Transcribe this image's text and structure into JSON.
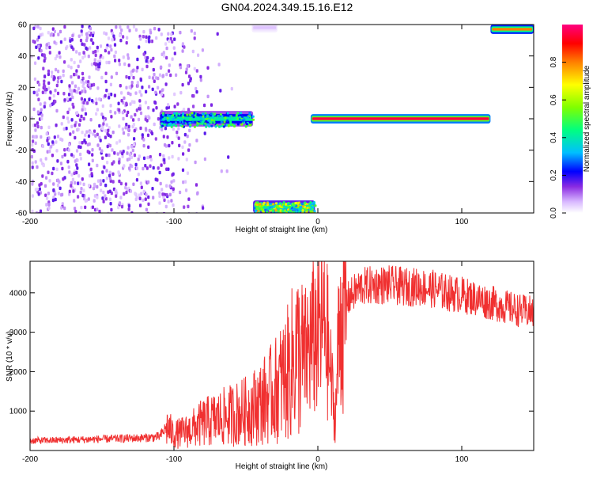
{
  "title": "GN04.2024.349.15.16.E12",
  "chart_data": [
    {
      "type": "heatmap",
      "xlabel": "Height of straight line (km)",
      "ylabel": "Frequency (Hz)",
      "xlim": [
        -200,
        150
      ],
      "ylim": [
        -60,
        60
      ],
      "xticks": [
        -200,
        -100,
        0,
        100
      ],
      "yticks": [
        -60,
        -40,
        -20,
        0,
        20,
        40,
        60
      ],
      "colorbar": {
        "label": "Normalized spectral amplitude",
        "range": [
          0,
          1
        ],
        "ticks": [
          0.0,
          0.2,
          0.4,
          0.6,
          0.8
        ],
        "tick_labels": [
          "0.0",
          "0.2",
          "0.4",
          "0.6",
          "0.8"
        ],
        "colors": [
          "#ffffff",
          "#d8b8ff",
          "#8a2be2",
          "#0000ff",
          "#00bfff",
          "#00ff80",
          "#7fff00",
          "#ffff00",
          "#ff8000",
          "#ff0000",
          "#ff0080"
        ]
      },
      "features": [
        {
          "name": "noise-scatter",
          "x_range": [
            -200,
            -100
          ],
          "freq_range": [
            -60,
            60
          ],
          "amplitude": 0.1
        },
        {
          "name": "band-center-noisy",
          "x_range": [
            -110,
            -45
          ],
          "freq": 0,
          "width_hz": 10,
          "amplitude": 0.4
        },
        {
          "name": "band-low",
          "x_range": [
            -45,
            -2
          ],
          "freq": -56,
          "width_hz": 8,
          "amplitude": 0.55
        },
        {
          "name": "band-top-faint",
          "x_range": [
            -46,
            -28
          ],
          "freq": 58,
          "width_hz": 6,
          "amplitude": 0.05
        },
        {
          "name": "band-center-strong",
          "x_range": [
            -5,
            120
          ],
          "freq": 0,
          "width_hz": 6,
          "amplitude": 0.95
        },
        {
          "name": "band-high",
          "x_range": [
            120,
            150
          ],
          "freq": 57,
          "width_hz": 6,
          "amplitude": 0.8
        }
      ]
    },
    {
      "type": "line",
      "xlabel": "Height of straight line (km)",
      "ylabel": "SNR (10 * v/v)",
      "xlim": [
        -200,
        150
      ],
      "ylim": [
        0,
        4800
      ],
      "xticks": [
        -200,
        -100,
        0,
        100
      ],
      "yticks": [
        1000,
        2000,
        3000,
        4000
      ],
      "series": [
        {
          "name": "SNR",
          "color": "#f03030",
          "x": [
            -200,
            -180,
            -160,
            -140,
            -120,
            -110,
            -105,
            -100,
            -90,
            -80,
            -70,
            -60,
            -50,
            -40,
            -30,
            -20,
            -15,
            -10,
            -5,
            0,
            5,
            10,
            12,
            15,
            20,
            25,
            30,
            40,
            50,
            60,
            70,
            80,
            90,
            100,
            110,
            120,
            130,
            140,
            150
          ],
          "y": [
            250,
            260,
            280,
            300,
            320,
            350,
            600,
            400,
            500,
            700,
            800,
            900,
            1000,
            1200,
            1500,
            2000,
            2500,
            2300,
            2700,
            3000,
            3300,
            1500,
            700,
            3200,
            3800,
            4000,
            4150,
            4200,
            4200,
            4150,
            4150,
            4100,
            4000,
            3950,
            3850,
            3750,
            3650,
            3550,
            3500
          ]
        }
      ]
    }
  ]
}
